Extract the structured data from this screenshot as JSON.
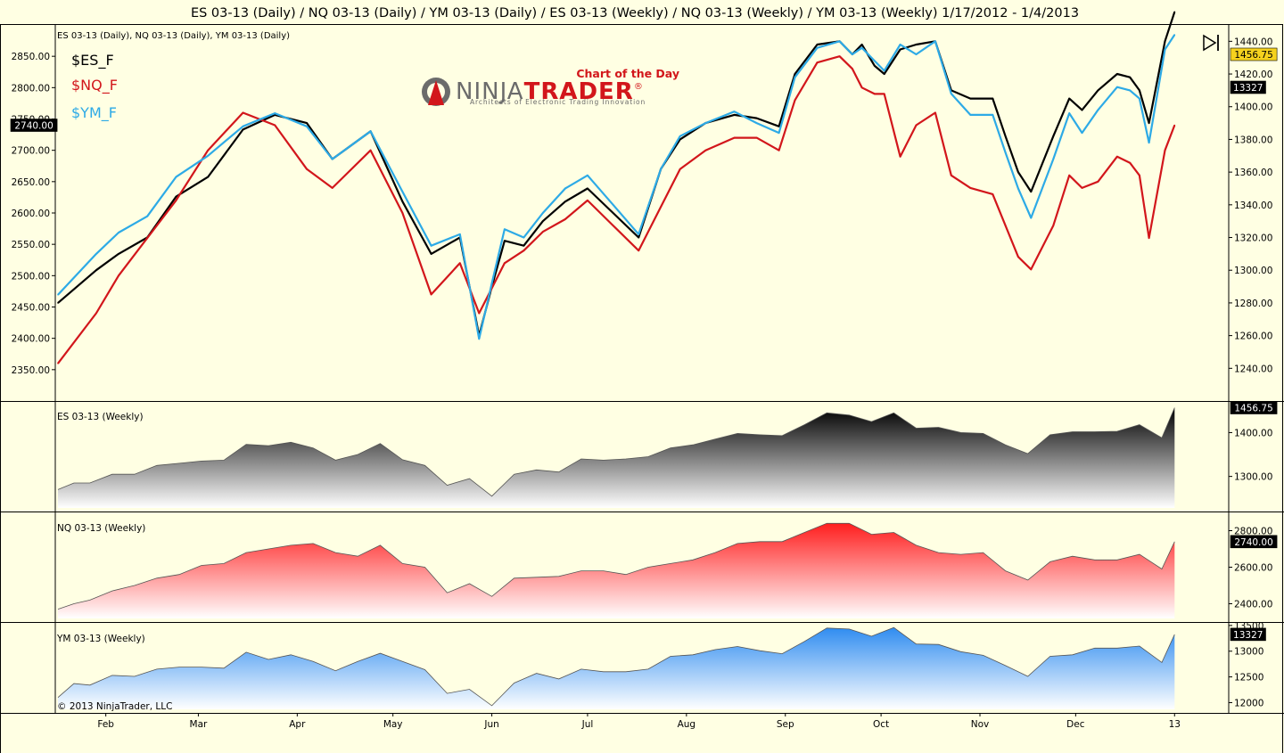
{
  "window": {
    "title": "ES 03-13 (Daily) / NQ 03-13 (Daily) / YM 03-13 (Daily) / ES 03-13 (Weekly) / NQ 03-13 (Weekly) / YM 03-13 (Weekly)  1/17/2012 - 1/4/2013"
  },
  "main_panel": {
    "instruments_label": "ES 03-13 (Daily), NQ 03-13 (Daily), YM 03-13 (Daily)",
    "legend": [
      {
        "name": "$ES_F",
        "color": "#000000"
      },
      {
        "name": "$NQ_F",
        "color": "#D2161B"
      },
      {
        "name": "$YM_F",
        "color": "#2DAAE6"
      }
    ],
    "logo": {
      "tagline_top": "Chart of the Day",
      "brand_a": "NINJA",
      "brand_b": "TRADER",
      "registered": "®",
      "subtitle": "Architects of Electronic Trading Innovation"
    },
    "icon": "go-to-end-icon"
  },
  "sub_panels": [
    {
      "label": "ES 03-13 (Weekly)",
      "badge": "1456.75"
    },
    {
      "label": "NQ 03-13 (Weekly)",
      "badge": "2740.00"
    },
    {
      "label": "YM 03-13 (Weekly)",
      "badge": "13327"
    }
  ],
  "copyright": "© 2013 NinjaTrader, LLC",
  "colors": {
    "background": "#FFFFE3",
    "es": "#000000",
    "nq": "#D2161B",
    "ym": "#2DAAE6",
    "badge_es": "#F5D21E"
  },
  "chart_data": [
    {
      "type": "line",
      "title": "ES 03-13 (Daily), NQ 03-13 (Daily), YM 03-13 (Daily)",
      "x_ticks": [
        "Feb",
        "Mar",
        "Apr",
        "May",
        "Jun",
        "Jul",
        "Aug",
        "Sep",
        "Oct",
        "Nov",
        "Dec",
        "13"
      ],
      "x_tick_days": [
        15,
        44,
        75,
        105,
        136,
        166,
        197,
        228,
        258,
        289,
        319,
        350
      ],
      "x_range": [
        0,
        353
      ],
      "ylim_left": [
        2300,
        2900
      ],
      "yticks_left": [
        2350,
        2400,
        2450,
        2500,
        2550,
        2600,
        2650,
        2700,
        2750,
        2800,
        2850
      ],
      "ylim_right": [
        1220,
        1450
      ],
      "yticks_right": [
        1240,
        1260,
        1280,
        1300,
        1320,
        1340,
        1360,
        1380,
        1400,
        1420,
        1440
      ],
      "left_axis_badge": "2740.00",
      "right_axis_badges": [
        "1456.75",
        "13327"
      ],
      "series": [
        {
          "name": "$ES_F",
          "axis": "right",
          "color": "#000000",
          "x": [
            0,
            12,
            19,
            28,
            37,
            47,
            58,
            68,
            78,
            86,
            98,
            108,
            117,
            126,
            132,
            136,
            140,
            146,
            152,
            159,
            166,
            174,
            182,
            189,
            195,
            203,
            212,
            219,
            226,
            231,
            238,
            245,
            249,
            252,
            256,
            259,
            264,
            269,
            275,
            280,
            286,
            293,
            297,
            301,
            305,
            312,
            317,
            321,
            326,
            332,
            336,
            339,
            342,
            347,
            350
          ],
          "y": [
            1280,
            1300,
            1310,
            1320,
            1345,
            1357,
            1386,
            1395,
            1390,
            1368,
            1385,
            1342,
            1310,
            1320,
            1260,
            1290,
            1318,
            1315,
            1330,
            1342,
            1350,
            1335,
            1320,
            1362,
            1380,
            1390,
            1395,
            1393,
            1388,
            1420,
            1438,
            1440,
            1432,
            1438,
            1425,
            1420,
            1435,
            1438,
            1440,
            1410,
            1405,
            1405,
            1382,
            1360,
            1348,
            1382,
            1405,
            1398,
            1410,
            1420,
            1418,
            1410,
            1390,
            1440,
            1458
          ]
        },
        {
          "name": "$NQ_F",
          "axis": "left",
          "color": "#D2161B",
          "x": [
            0,
            12,
            19,
            28,
            37,
            47,
            58,
            68,
            78,
            86,
            98,
            108,
            117,
            126,
            132,
            136,
            140,
            146,
            152,
            159,
            166,
            174,
            182,
            189,
            195,
            203,
            212,
            219,
            226,
            231,
            238,
            245,
            249,
            252,
            256,
            259,
            264,
            269,
            275,
            280,
            286,
            293,
            297,
            301,
            305,
            312,
            317,
            321,
            326,
            332,
            336,
            339,
            342,
            347,
            350
          ],
          "y": [
            2360,
            2440,
            2500,
            2560,
            2620,
            2700,
            2760,
            2740,
            2670,
            2640,
            2700,
            2600,
            2470,
            2520,
            2440,
            2480,
            2520,
            2540,
            2570,
            2590,
            2620,
            2580,
            2540,
            2610,
            2670,
            2700,
            2720,
            2720,
            2700,
            2780,
            2840,
            2850,
            2830,
            2800,
            2790,
            2790,
            2690,
            2740,
            2760,
            2660,
            2640,
            2630,
            2580,
            2530,
            2510,
            2580,
            2660,
            2640,
            2650,
            2690,
            2680,
            2660,
            2560,
            2700,
            2740
          ]
        },
        {
          "name": "$YM_F",
          "axis": "right",
          "color": "#2DAAE6",
          "x": [
            0,
            12,
            19,
            28,
            37,
            47,
            58,
            68,
            78,
            86,
            98,
            108,
            117,
            126,
            132,
            136,
            140,
            146,
            152,
            159,
            166,
            174,
            182,
            189,
            195,
            203,
            212,
            219,
            226,
            231,
            238,
            245,
            249,
            252,
            256,
            259,
            264,
            269,
            275,
            280,
            286,
            293,
            297,
            301,
            305,
            312,
            317,
            321,
            326,
            332,
            336,
            339,
            342,
            347,
            350
          ],
          "y": [
            1285,
            1310,
            1323,
            1333,
            1357,
            1370,
            1388,
            1396,
            1388,
            1368,
            1385,
            1348,
            1315,
            1322,
            1258,
            1292,
            1325,
            1320,
            1335,
            1350,
            1358,
            1340,
            1322,
            1362,
            1382,
            1390,
            1397,
            1390,
            1384,
            1418,
            1436,
            1440,
            1432,
            1436,
            1428,
            1422,
            1438,
            1432,
            1440,
            1408,
            1395,
            1395,
            1372,
            1350,
            1332,
            1368,
            1396,
            1384,
            1398,
            1412,
            1410,
            1405,
            1378,
            1435,
            1444
          ]
        }
      ]
    },
    {
      "type": "area",
      "title": "ES 03-13 (Weekly)",
      "color": "#000000",
      "ylim": [
        1220,
        1470
      ],
      "yticks": [
        1300,
        1400
      ],
      "x": [
        0,
        5,
        10,
        17,
        24,
        31,
        38,
        45,
        52,
        59,
        66,
        73,
        80,
        87,
        94,
        101,
        108,
        115,
        122,
        129,
        136,
        143,
        150,
        157,
        164,
        171,
        178,
        185,
        192,
        199,
        206,
        213,
        220,
        227,
        234,
        241,
        248,
        255,
        262,
        269,
        276,
        283,
        290,
        297,
        304,
        311,
        318,
        325,
        332,
        339,
        346,
        350
      ],
      "y": [
        1270,
        1285,
        1285,
        1305,
        1305,
        1325,
        1330,
        1335,
        1337,
        1373,
        1370,
        1378,
        1365,
        1337,
        1350,
        1375,
        1338,
        1325,
        1280,
        1295,
        1255,
        1305,
        1315,
        1310,
        1340,
        1337,
        1340,
        1345,
        1365,
        1372,
        1385,
        1398,
        1395,
        1393,
        1418,
        1445,
        1440,
        1425,
        1445,
        1410,
        1412,
        1400,
        1398,
        1372,
        1352,
        1395,
        1402,
        1402,
        1403,
        1418,
        1388,
        1456.75
      ]
    },
    {
      "type": "area",
      "title": "NQ 03-13 (Weekly)",
      "color": "#FF1E1E",
      "ylim": [
        2300,
        2900
      ],
      "yticks": [
        2400,
        2600,
        2800
      ],
      "x": [
        0,
        5,
        10,
        17,
        24,
        31,
        38,
        45,
        52,
        59,
        66,
        73,
        80,
        87,
        94,
        101,
        108,
        115,
        122,
        129,
        136,
        143,
        150,
        157,
        164,
        171,
        178,
        185,
        192,
        199,
        206,
        213,
        220,
        227,
        234,
        241,
        248,
        255,
        262,
        269,
        276,
        283,
        290,
        297,
        304,
        311,
        318,
        325,
        332,
        339,
        346,
        350
      ],
      "y": [
        2370,
        2400,
        2420,
        2470,
        2500,
        2540,
        2560,
        2610,
        2620,
        2680,
        2700,
        2720,
        2730,
        2680,
        2660,
        2720,
        2620,
        2600,
        2460,
        2510,
        2440,
        2540,
        2545,
        2550,
        2580,
        2580,
        2560,
        2600,
        2620,
        2640,
        2680,
        2730,
        2740,
        2740,
        2790,
        2840,
        2840,
        2780,
        2790,
        2720,
        2680,
        2670,
        2680,
        2580,
        2530,
        2630,
        2660,
        2640,
        2640,
        2670,
        2590,
        2740
      ]
    },
    {
      "type": "area",
      "title": "YM 03-13 (Weekly)",
      "color": "#2F8CF0",
      "ylim": [
        11800,
        13550
      ],
      "yticks": [
        12000,
        12500,
        13000,
        13500
      ],
      "x": [
        0,
        5,
        10,
        17,
        24,
        31,
        38,
        45,
        52,
        59,
        66,
        73,
        80,
        87,
        94,
        101,
        108,
        115,
        122,
        129,
        136,
        143,
        150,
        157,
        164,
        171,
        178,
        185,
        192,
        199,
        206,
        213,
        220,
        227,
        234,
        241,
        248,
        255,
        262,
        269,
        276,
        283,
        290,
        297,
        304,
        311,
        318,
        325,
        332,
        339,
        346,
        350
      ],
      "y": [
        12100,
        12370,
        12340,
        12530,
        12510,
        12650,
        12690,
        12690,
        12670,
        12980,
        12840,
        12930,
        12800,
        12620,
        12800,
        12960,
        12800,
        12640,
        12180,
        12260,
        11940,
        12380,
        12570,
        12460,
        12650,
        12600,
        12600,
        12650,
        12900,
        12930,
        13030,
        13090,
        13010,
        12950,
        13190,
        13450,
        13430,
        13290,
        13460,
        13140,
        13130,
        12990,
        12920,
        12720,
        12510,
        12900,
        12930,
        13060,
        13060,
        13100,
        12780,
        13327
      ]
    }
  ]
}
